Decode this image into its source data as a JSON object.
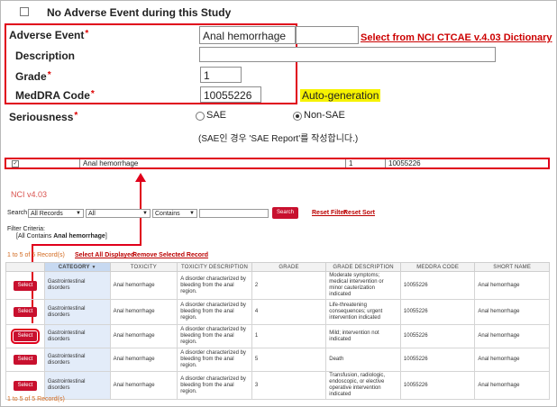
{
  "no_ae": {
    "label": "No Adverse Event during this Study",
    "checked": false
  },
  "form": {
    "adverse_event": {
      "label": "Adverse Event",
      "value": "Anal hemorrhage"
    },
    "select_link": "Select from NCI CTCAE v.4.03 Dictionary",
    "description": {
      "label": "Description",
      "value": ""
    },
    "grade": {
      "label": "Grade",
      "value": "1"
    },
    "meddra": {
      "label": "MedDRA Code",
      "value": "10055226"
    },
    "autogen": "Auto-generation",
    "seriousness": {
      "label": "Seriousness",
      "options": [
        "SAE",
        "Non-SAE"
      ],
      "selected": "Non-SAE"
    },
    "sae_note": "(SAE인 경우 'SAE Report'를 작성합니다.)",
    "required_mark": "*"
  },
  "selected_row": {
    "event": "Anal hemorrhage",
    "grade": "1",
    "code": "10055226",
    "checked": true
  },
  "nci": {
    "version": "NCI v4.03",
    "search": {
      "label": "Search",
      "field1": "All Records",
      "field2": "All",
      "operator": "Contains",
      "value": "",
      "button": "Search",
      "reset_filter": "Reset Filter",
      "reset_sort": "Reset Sort"
    },
    "filter_label": "Filter Criteria:",
    "filter_value_prefix": "[All Contains ",
    "filter_value_term": "Anal hemorrhage",
    "filter_value_suffix": "]",
    "record_count_top": "1 to 5 of 5 Record(s)",
    "select_all": "Select All Displayed",
    "remove_selected": "Remove Selected Record",
    "record_count_bottom": "1 to 5 of 5 Record(s)",
    "columns": [
      "",
      "CATEGORY",
      "TOXICITY",
      "TOXICITY DESCRIPTION",
      "GRADE",
      "GRADE DESCRIPTION",
      "MEDDRA CODE",
      "SHORT NAME"
    ],
    "button_label": "Select",
    "rows": [
      {
        "category": "Gastrointestinal disorders",
        "toxicity": "Anal hemorrhage",
        "tox_desc": "A disorder characterized by bleeding from the anal region.",
        "grade": "2",
        "grade_desc": "Moderate symptoms; medical intervention or minor cauterization indicated",
        "code": "10055226",
        "short": "Anal hemorrhage"
      },
      {
        "category": "Gastrointestinal disorders",
        "toxicity": "Anal hemorrhage",
        "tox_desc": "A disorder characterized by bleeding from the anal region.",
        "grade": "4",
        "grade_desc": "Life-threatening consequences; urgent intervention indicated",
        "code": "10055226",
        "short": "Anal hemorrhage"
      },
      {
        "category": "Gastrointestinal disorders",
        "toxicity": "Anal hemorrhage",
        "tox_desc": "A disorder characterized by bleeding from the anal region.",
        "grade": "1",
        "grade_desc": "Mild; intervention not indicated",
        "code": "10055226",
        "short": "Anal hemorrhage"
      },
      {
        "category": "Gastrointestinal disorders",
        "toxicity": "Anal hemorrhage",
        "tox_desc": "A disorder characterized by bleeding from the anal region.",
        "grade": "5",
        "grade_desc": "Death",
        "code": "10055226",
        "short": "Anal hemorrhage"
      },
      {
        "category": "Gastrointestinal disorders",
        "toxicity": "Anal hemorrhage",
        "tox_desc": "A disorder characterized by bleeding from the anal region.",
        "grade": "3",
        "grade_desc": "Transfusion, radiologic, endoscopic, or elective operative intervention indicated",
        "code": "10055226",
        "short": "Anal hemorrhage"
      }
    ]
  }
}
